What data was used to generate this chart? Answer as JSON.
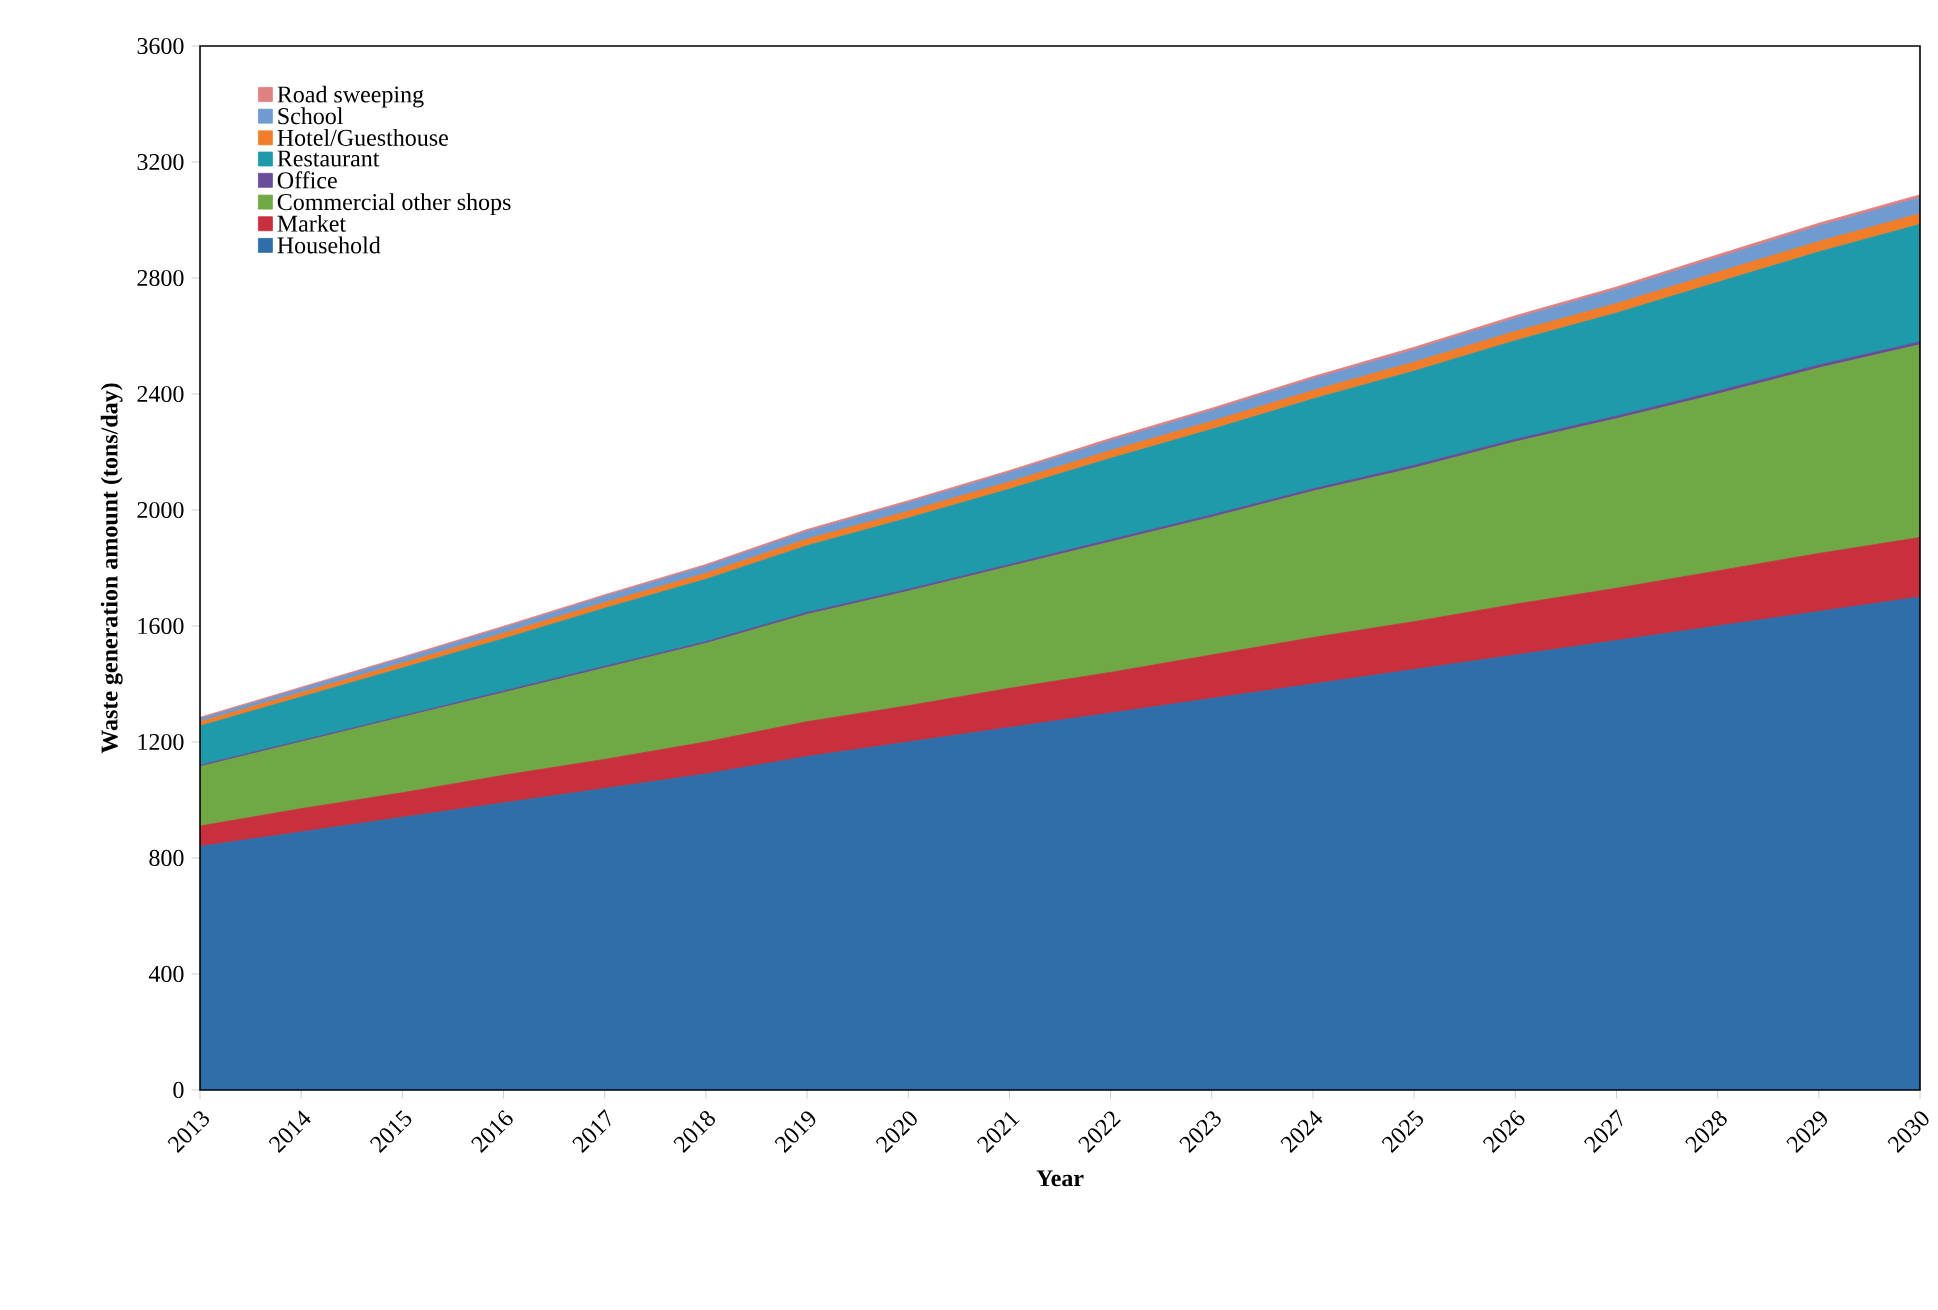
{
  "chart_data": {
    "type": "area",
    "stacked": true,
    "xlabel": "Year",
    "ylabel": "Waste generation amount (tons/day)",
    "x": [
      2013,
      2014,
      2015,
      2016,
      2017,
      2018,
      2019,
      2020,
      2021,
      2022,
      2023,
      2024,
      2025,
      2026,
      2027,
      2028,
      2029,
      2030
    ],
    "xlim": [
      2013,
      2030
    ],
    "xticks": [
      2013,
      2014,
      2015,
      2016,
      2017,
      2018,
      2019,
      2020,
      2021,
      2022,
      2023,
      2024,
      2025,
      2026,
      2027,
      2028,
      2029,
      2030
    ],
    "ylim": [
      0,
      3600
    ],
    "yticks": [
      0,
      400,
      800,
      1200,
      1600,
      2000,
      2400,
      2800,
      3200,
      3600
    ],
    "legend": "top left",
    "grid": false,
    "series": [
      {
        "name": "Household",
        "color": "#2f6ea8",
        "values": [
          840,
          890,
          940,
          990,
          1040,
          1090,
          1150,
          1200,
          1250,
          1300,
          1350,
          1400,
          1450,
          1500,
          1550,
          1600,
          1650,
          1700
        ]
      },
      {
        "name": "Market",
        "color": "#c8303e",
        "values": [
          70,
          80,
          85,
          95,
          100,
          110,
          120,
          125,
          135,
          140,
          150,
          160,
          165,
          175,
          180,
          190,
          200,
          205
        ]
      },
      {
        "name": "Commercial other shops",
        "color": "#70a845",
        "values": [
          205,
          230,
          260,
          285,
          315,
          340,
          370,
          395,
          420,
          450,
          475,
          505,
          530,
          560,
          585,
          610,
          640,
          665
        ]
      },
      {
        "name": "Office",
        "color": "#6a4d9a",
        "values": [
          5,
          5,
          5,
          6,
          6,
          6,
          7,
          7,
          7,
          8,
          8,
          8,
          9,
          9,
          9,
          10,
          10,
          10
        ]
      },
      {
        "name": "Restaurant",
        "color": "#1f9aaa",
        "values": [
          135,
          150,
          165,
          180,
          200,
          215,
          230,
          245,
          260,
          280,
          295,
          310,
          325,
          340,
          355,
          375,
          390,
          405
        ]
      },
      {
        "name": "Hotel/Guesthouse",
        "color": "#f07d2a",
        "values": [
          15,
          16,
          17,
          19,
          20,
          21,
          23,
          24,
          25,
          27,
          28,
          29,
          31,
          32,
          33,
          35,
          36,
          37
        ]
      },
      {
        "name": "School",
        "color": "#6f9bd1",
        "values": [
          10,
          13,
          16,
          18,
          21,
          24,
          26,
          29,
          32,
          34,
          37,
          40,
          42,
          45,
          48,
          50,
          53,
          55
        ]
      },
      {
        "name": "Road sweeping",
        "color": "#e08080",
        "values": [
          5,
          5,
          5,
          6,
          6,
          6,
          7,
          7,
          7,
          8,
          8,
          8,
          9,
          9,
          9,
          10,
          10,
          10
        ]
      }
    ]
  }
}
